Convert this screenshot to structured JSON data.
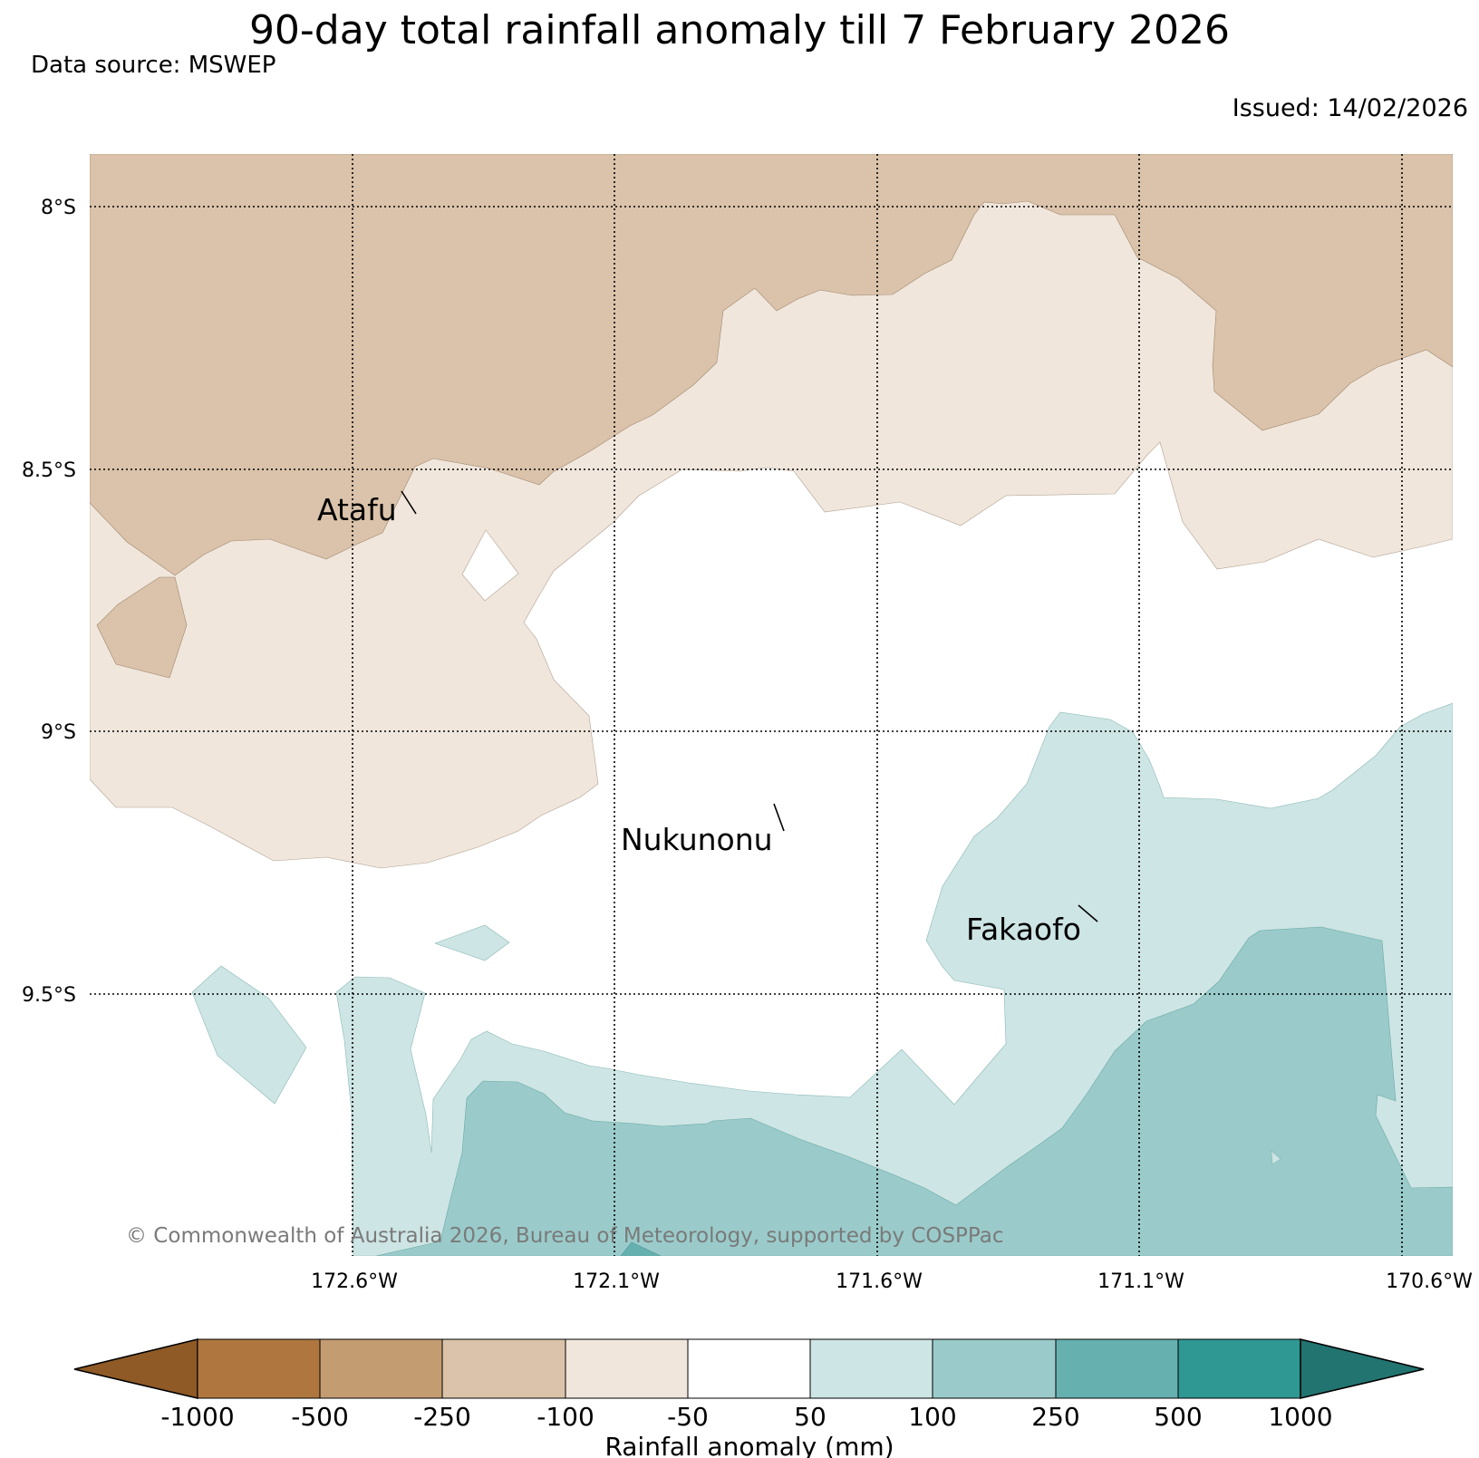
{
  "header": {
    "title": "90-day total rainfall anomaly till 7 February 2026",
    "source": "Data source: MSWEP",
    "issued": "Issued: 14/02/2026"
  },
  "map": {
    "lat_labels": [
      "8°S",
      "8.5°S",
      "9°S",
      "9.5°S"
    ],
    "lon_labels": [
      "172.6°W",
      "172.1°W",
      "171.6°W",
      "171.1°W",
      "170.6°W"
    ],
    "places": [
      "Atafu",
      "Nukunonu",
      "Fakaofo"
    ],
    "copyright": "© Commonwealth of Australia 2026, Bureau of Meteorology, supported by COSPPac"
  },
  "colorbar": {
    "label": "Rainfall anomaly (mm)",
    "ticks": [
      "-1000",
      "-500",
      "-250",
      "-100",
      "-50",
      "50",
      "100",
      "250",
      "500",
      "1000"
    ],
    "colors": {
      "below_min": "#8f5a26",
      "bins": [
        "#af773f",
        "#c49c72",
        "#dac3aa",
        "#f0e6dc",
        "#ffffff",
        "#cde5e4",
        "#9acbca",
        "#66b0af",
        "#2f9893"
      ],
      "above_max": "#227470"
    }
  }
}
